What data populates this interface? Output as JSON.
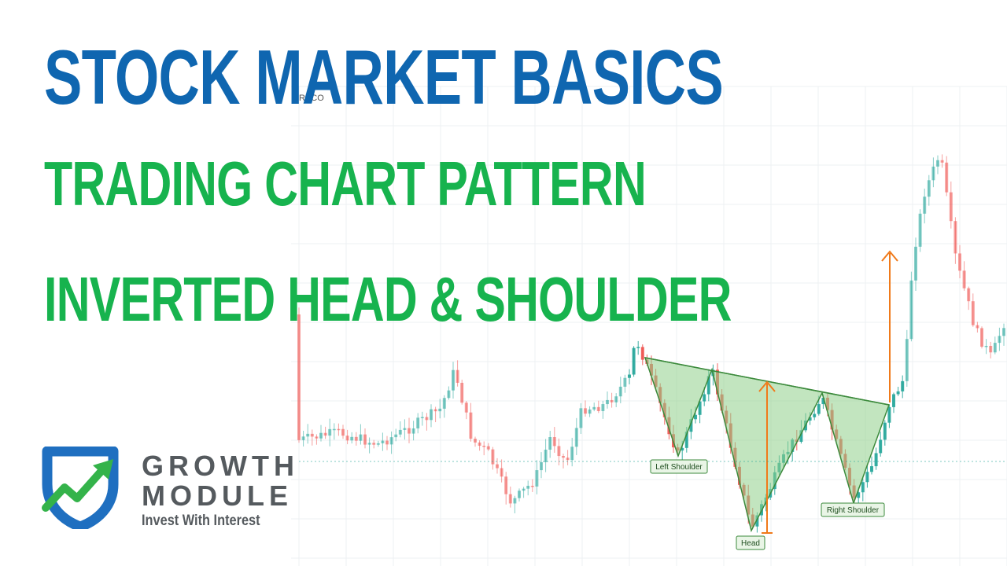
{
  "headline": {
    "main": "STOCK MARKET BASICS",
    "line2": "TRADING CHART PATTERN",
    "line3": "INVERTED HEAD & SHOULDER"
  },
  "chart": {
    "header_text": "RECO",
    "pattern_labels": {
      "left_shoulder": "Left Shoulder",
      "head": "Head",
      "right_shoulder": "Right Shoulder"
    },
    "colors": {
      "up": "#26a69a",
      "down": "#ef5350",
      "pattern_fill": "#8fd08a",
      "pattern_line": "#3c8a3c",
      "measure": "#f07a1a"
    }
  },
  "logo": {
    "brand_line1": "GROWTH",
    "brand_line2": "MODULE",
    "tagline": "Invest With Interest",
    "colors": {
      "shield": "#1f6fc0",
      "arrow": "#34b34a",
      "text": "#555a5e"
    }
  }
}
